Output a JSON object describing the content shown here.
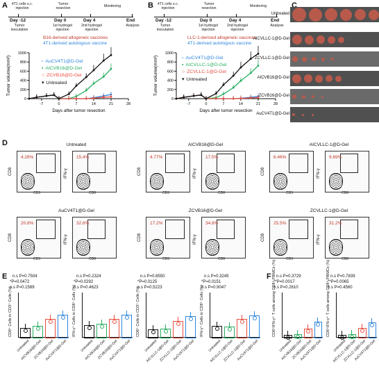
{
  "panelA": {
    "letter": "A",
    "timeline_top": [
      "4T1 cells s.c. injection",
      "Tumor resection",
      "Monitoring"
    ],
    "days": [
      "Day -12",
      "Day 0",
      "Day 4",
      "End"
    ],
    "timeline_bottom": [
      "Tumor inoculation",
      "1st hydrogel injection",
      "2nd hydrogel injection",
      "Analysis"
    ],
    "vaccine_line1": "B16-derived allogeneic vaccines",
    "vaccine_line2": "4T1-derived autologous vaccine",
    "legend": [
      "AuCV4T1@D-Gel",
      "AICVB16@D-Gel",
      "ZCVB16@D-Gel",
      "Untreated"
    ],
    "colors": [
      "#2e86de",
      "#27ae60",
      "#e74c3c",
      "#111111"
    ]
  },
  "panelB": {
    "letter": "B",
    "timeline_top": [
      "4T1 cells s.c. injection",
      "Tumor resection",
      "Monitoring"
    ],
    "days": [
      "Day -12",
      "Day 0",
      "Day 4",
      "End"
    ],
    "timeline_bottom": [
      "Tumor inoculation",
      "1st hydrogel injection",
      "2nd hydrogel injection",
      "Analysis"
    ],
    "vaccine_line1": "LLC-1-derived allogeneic vaccines",
    "vaccine_line2": "4T1-derived autologous vaccine",
    "legend": [
      "AuCV4T1@D-Gel",
      "AICVLLC-1@D-Gel",
      "ZCVLLC-1@D-Gel",
      "Untreated"
    ],
    "colors": [
      "#2e86de",
      "#27ae60",
      "#e74c3c",
      "#111111"
    ]
  },
  "panelC": {
    "letter": "C",
    "rows": [
      "Untreated",
      "AICVLLC-1@D-Gel",
      "ZCVLLC-1@D-Gel",
      "AICVB16@D-Gel",
      "ZCVB16@D-Gel",
      "AuCV4T1@D-Gel"
    ]
  },
  "panelD": {
    "letter": "D",
    "groups": [
      {
        "title": "Untreated",
        "cd3": "4.28%",
        "cd8": "15.4%"
      },
      {
        "title": "AICVB16@D-Gel",
        "cd3": "4.77%",
        "cd8": "17.5%"
      },
      {
        "title": "AICVLLC-1@D-Gel",
        "cd3": "6.46%",
        "cd8": "9.69%"
      },
      {
        "title": "AuCV4T1@D-Gel",
        "cd3": "20.8%",
        "cd8": "32.6%"
      },
      {
        "title": "ZCVB16@D-Gel",
        "cd3": "17.2%",
        "cd8": "34.8%"
      },
      {
        "title": "ZCVLLC-1@D-Gel",
        "cd3": "25.5%",
        "cd8": "31.2%"
      }
    ],
    "xaxis_cd3": "CD3",
    "xaxis_cd8": "CD8",
    "yaxis_cd8": "CD8",
    "yaxis_ifn": "IFN-γ"
  },
  "panelE": {
    "letter": "E",
    "plots": [
      {
        "ylabel": "CD8⁺ Cells in CD3⁺ Cells (%)",
        "stats": [
          "n.s P=0.7504",
          "*P=0.0472",
          "n.s P=0.1589"
        ],
        "xlabels": [
          "Untreated",
          "AICVB16@D-Gel",
          "ZCVB16@D-Gel",
          "AuCV4T1@D-Gel"
        ]
      },
      {
        "ylabel": "IFN-γ⁺ Cells in CD8⁺ Cells (%)",
        "stats": [
          "n.s P=0.2324",
          "*P=0.0292",
          "n.s P=0.4623"
        ],
        "xlabels": [
          "Untreated",
          "AICVB16@D-Gel",
          "ZCVB16@D-Gel",
          "AuCV4T1@D-Gel"
        ]
      },
      {
        "ylabel": "CD8⁺ Cells in CD3⁺ Cells (%)",
        "stats": [
          "n.s P=0.8550",
          "*P=0.0125",
          "n.s P=0.5223"
        ],
        "xlabels": [
          "Untreated",
          "AICVLLC-1@D-Gel",
          "ZCVLLC-1@D-Gel",
          "AuCV4T1@D-Gel"
        ]
      },
      {
        "ylabel": "IFN-γ⁺ Cells in CD8⁺ Cells (%)",
        "stats": [
          "n.s P=0.3245",
          "*P=0.0151",
          "n.s P=0.9047"
        ],
        "xlabels": [
          "Untreated",
          "AICVLLC-1@D-Gel",
          "ZCVLLC-1@D-Gel",
          "AuCV4T1@D-Gel"
        ]
      }
    ]
  },
  "panelF": {
    "letter": "F",
    "plots": [
      {
        "ylabel": "CD8⁺IFN-γ⁺ T cells among CD8⁺ PBMCs (%)",
        "stats": [
          "n.s P=0.3729",
          "**P=0.0017",
          "n.s P=0.2610"
        ],
        "xlabels": [
          "Untreated",
          "AICVB16@D-Gel",
          "ZCVB16@D-Gel",
          "AuCV4T1@D-Gel"
        ]
      },
      {
        "ylabel": "CD8⁺IFN-γ⁺ T cells among CD8⁺ PBMCs (%)",
        "stats": [
          "n.s P=0.7839",
          "**P=0.0065",
          "n.s P=0.4560"
        ],
        "xlabels": [
          "Untreated",
          "AICVLLC-1@D-Gel",
          "ZCVLLC-1@D-Gel",
          "AuCV4T1@D-Gel"
        ]
      }
    ]
  },
  "chart_data": [
    {
      "type": "line",
      "xlabel": "Days after tumor resection",
      "ylabel": "Tumor volume(mm³)",
      "xticks": [
        -7,
        0,
        7,
        14,
        21,
        28
      ],
      "yticks": [
        0,
        200,
        400,
        600,
        800,
        1000
      ],
      "xlim": [
        -12,
        28
      ],
      "ylim": [
        0,
        1000
      ],
      "series": [
        {
          "name": "AuCV4T1@D-Gel",
          "x": [
            -12,
            -9,
            -5,
            -2,
            0,
            4,
            7,
            11,
            14,
            18,
            21
          ],
          "values": [
            0,
            30,
            60,
            80,
            0,
            0,
            0,
            0,
            20,
            60,
            90
          ]
        },
        {
          "name": "AICVB16@D-Gel",
          "x": [
            -12,
            -9,
            -5,
            -2,
            0,
            4,
            7,
            11,
            14,
            18,
            21
          ],
          "values": [
            0,
            30,
            60,
            80,
            0,
            0,
            50,
            180,
            330,
            480,
            650
          ]
        },
        {
          "name": "ZCVB16@D-Gel",
          "x": [
            -12,
            -9,
            -5,
            -2,
            0,
            4,
            7,
            11,
            14,
            18,
            21
          ],
          "values": [
            0,
            30,
            60,
            80,
            0,
            0,
            0,
            0,
            10,
            30,
            40
          ]
        },
        {
          "name": "Untreated",
          "x": [
            -12,
            -9,
            -5,
            -2,
            0,
            4,
            7,
            11,
            14,
            18,
            21
          ],
          "values": [
            0,
            30,
            60,
            80,
            0,
            100,
            280,
            470,
            620,
            830,
            950
          ]
        }
      ]
    },
    {
      "type": "line",
      "xlabel": "Days after tumor resection",
      "ylabel": "Tumor volume(mm³)",
      "xticks": [
        -7,
        0,
        7,
        14,
        21,
        28
      ],
      "yticks": [
        0,
        200,
        400,
        600,
        800,
        1000
      ],
      "xlim": [
        -12,
        28
      ],
      "ylim": [
        0,
        1000
      ],
      "series": [
        {
          "name": "AuCV4T1@D-Gel",
          "x": [
            -12,
            -9,
            -5,
            -2,
            0,
            4,
            7,
            11,
            14,
            18,
            21
          ],
          "values": [
            0,
            30,
            60,
            80,
            0,
            0,
            0,
            0,
            10,
            30,
            50
          ]
        },
        {
          "name": "AICVLLC-1@D-Gel",
          "x": [
            -12,
            -9,
            -5,
            -2,
            0,
            4,
            7,
            11,
            14,
            18,
            21
          ],
          "values": [
            0,
            30,
            60,
            80,
            0,
            20,
            100,
            240,
            390,
            560,
            720
          ]
        },
        {
          "name": "ZCVLLC-1@D-Gel",
          "x": [
            -12,
            -9,
            -5,
            -2,
            0,
            4,
            7,
            11,
            14,
            18,
            21
          ],
          "values": [
            0,
            30,
            60,
            80,
            0,
            0,
            0,
            0,
            5,
            15,
            25
          ]
        },
        {
          "name": "Untreated",
          "x": [
            -12,
            -9,
            -5,
            -2,
            0,
            4,
            7,
            11,
            14,
            18,
            21
          ],
          "values": [
            0,
            30,
            60,
            80,
            0,
            110,
            300,
            500,
            680,
            870,
            980
          ]
        }
      ]
    },
    {
      "type": "bar",
      "categories": [
        "Untreated",
        "AICVB16@D-Gel",
        "ZCVB16@D-Gel",
        "AuCV4T1@D-Gel"
      ],
      "values": [
        1.2,
        1.5,
        2.4,
        3.0
      ],
      "ylabel": "CD8⁺ Cells in CD3⁺ Cells (%)",
      "ylim": [
        0,
        6
      ]
    },
    {
      "type": "bar",
      "categories": [
        "Untreated",
        "AICVB16@D-Gel",
        "ZCVB16@D-Gel",
        "AuCV4T1@D-Gel"
      ],
      "values": [
        16,
        18,
        24,
        30
      ],
      "ylabel": "IFN-γ⁺ Cells in CD8⁺ Cells (%)",
      "ylim": [
        0,
        60
      ]
    },
    {
      "type": "bar",
      "categories": [
        "Untreated",
        "AICVLLC-1@D-Gel",
        "ZCVLLC-1@D-Gel",
        "AuCV4T1@D-Gel"
      ],
      "values": [
        1.0,
        1.1,
        2.2,
        2.8
      ],
      "ylabel": "CD8⁺ Cells in CD3⁺ Cells (%)",
      "ylim": [
        0,
        6
      ]
    },
    {
      "type": "bar",
      "categories": [
        "Untreated",
        "AICVLLC-1@D-Gel",
        "ZCVLLC-1@D-Gel",
        "AuCV4T1@D-Gel"
      ],
      "values": [
        15,
        14,
        24,
        29
      ],
      "ylabel": "IFN-γ⁺ Cells in CD8⁺ Cells (%)",
      "ylim": [
        0,
        60
      ]
    },
    {
      "type": "bar",
      "categories": [
        "Untreated",
        "AICVB16@D-Gel",
        "ZCVB16@D-Gel",
        "AuCV4T1@D-Gel"
      ],
      "values": [
        1.5,
        1.8,
        5.5,
        10.5
      ],
      "ylabel": "CD8⁺IFN-γ⁺ T cells among CD8⁺ PBMCs (%)",
      "ylim": [
        0,
        30
      ]
    },
    {
      "type": "bar",
      "categories": [
        "Untreated",
        "AICVLLC-1@D-Gel",
        "ZCVLLC-1@D-Gel",
        "AuCV4T1@D-Gel"
      ],
      "values": [
        1.6,
        1.9,
        6.0,
        10.0
      ],
      "ylabel": "CD8⁺IFN-γ⁺ T cells among CD8⁺ PBMCs (%)",
      "ylim": [
        0,
        30
      ]
    }
  ]
}
